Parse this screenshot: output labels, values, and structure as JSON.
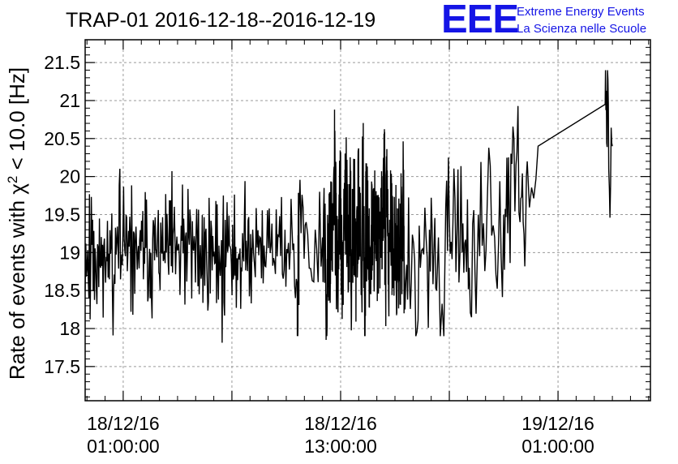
{
  "title": "TRAP-01 2016-12-18--2016-12-19",
  "logo": {
    "mark": "EEE",
    "line1": "Extreme Energy Events",
    "line2": "La Scienza nelle Scuole",
    "color": "#1515e6"
  },
  "colors": {
    "series": "#000000",
    "grid": "#9a9a9a",
    "frame": "#000000"
  },
  "chart_data": {
    "type": "line",
    "title": "TRAP-01 2016-12-18--2016-12-19",
    "ylabel_prefix": "Rate of events with χ",
    "ylabel_sup": "2",
    "ylabel_suffix": " < 10.0 [Hz]",
    "xlabel": "",
    "x_unit": "hours since 2016-12-18 00:00:00",
    "xlim": [
      -1.1,
      30.1
    ],
    "ylim": [
      17.05,
      21.8
    ],
    "grid": true,
    "x_ticks": [
      {
        "date": "18/12/16",
        "time": "01:00:00",
        "value": 1
      },
      {
        "date": "18/12/16",
        "time": "13:00:00",
        "value": 13
      },
      {
        "date": "19/12/16",
        "time": "01:00:00",
        "value": 25
      }
    ],
    "y_ticks": [
      "17.5",
      "18",
      "18.5",
      "19",
      "19.5",
      "20",
      "20.5",
      "21",
      "21.5"
    ],
    "series": [
      {
        "name": "",
        "segments": [
          {
            "x_start": -1.1,
            "x_end": 8.1,
            "n": 270,
            "base": 19.0,
            "amp": 0.75,
            "seed": 11
          },
          {
            "x_start": 8.1,
            "x_end": 10.7,
            "n": 55,
            "base": 19.1,
            "amp": 0.65,
            "seed": 23
          },
          {
            "x_start": 12.2,
            "x_end": 16.5,
            "n": 70,
            "base": 19.2,
            "amp": 0.7,
            "seed": 37
          }
        ],
        "anchors": [
          [
            10.7,
            19.5
          ],
          [
            11.1,
            19.4
          ],
          [
            11.6,
            19.3
          ],
          [
            12.0,
            19.2
          ],
          [
            16.5,
            19.0
          ],
          [
            16.9,
            18.6
          ],
          [
            17.4,
            18.8
          ],
          [
            17.9,
            19.3
          ],
          [
            18.3,
            18.5
          ],
          [
            18.8,
            19.6
          ],
          [
            19.2,
            19.4
          ],
          [
            19.7,
            19.0
          ],
          [
            20.1,
            18.8
          ],
          [
            20.6,
            19.5
          ],
          [
            21.1,
            19.7
          ],
          [
            21.5,
            19.2
          ],
          [
            22.0,
            19.5
          ],
          [
            22.4,
            20.3
          ],
          [
            22.9,
            19.4
          ],
          [
            23.3,
            20.2
          ],
          [
            23.9,
            20.4
          ],
          [
            27.6,
            20.95
          ],
          [
            27.8,
            20.1
          ],
          [
            28.0,
            20.4
          ]
        ]
      }
    ]
  }
}
